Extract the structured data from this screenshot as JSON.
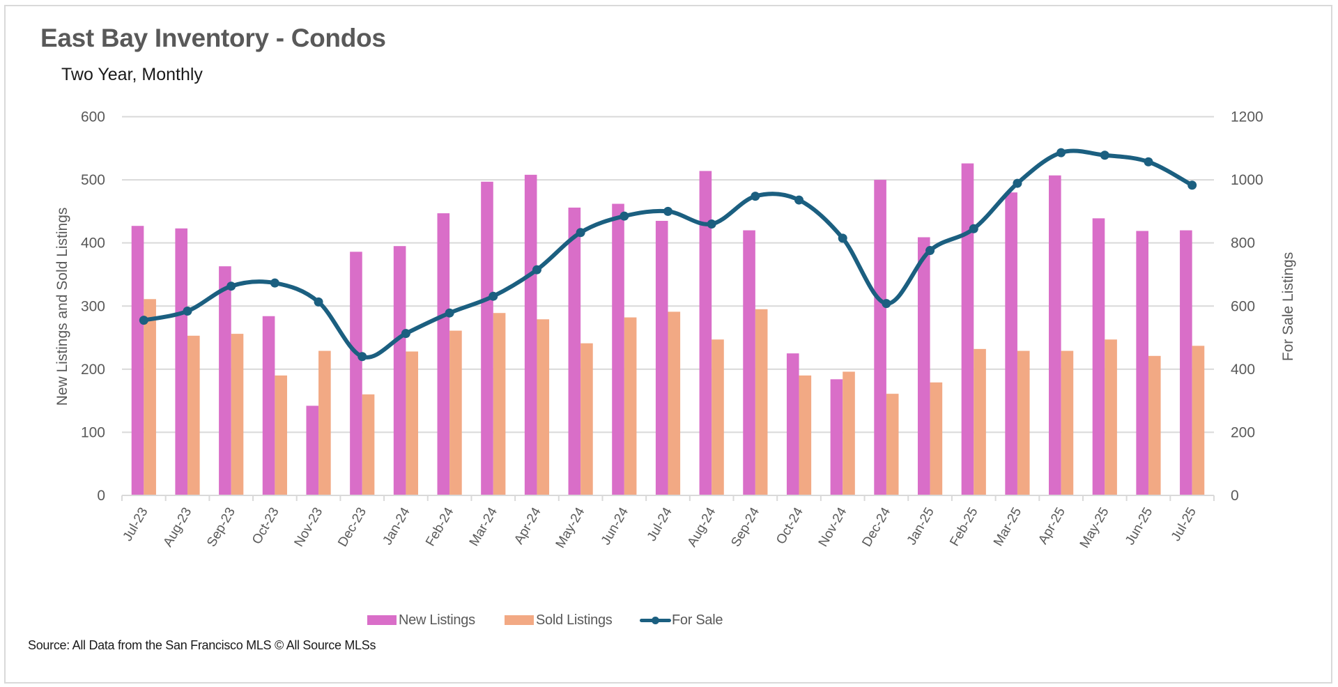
{
  "chart_data": {
    "type": "bar",
    "combo": "clustered bar + line (secondary axis)",
    "title": "East Bay Inventory - Condos",
    "subtitle": "Two Year, Monthly",
    "source": "Source: All Data from the San Francisco MLS © All Source MLSs",
    "xlabel": "",
    "ylabel": "New Listings and Sold Listings",
    "ylabel_right": "For Sale Listings",
    "ylim": [
      0,
      600
    ],
    "yticks": [
      0,
      100,
      200,
      300,
      400,
      500,
      600
    ],
    "ylim_right": [
      0,
      1200
    ],
    "yticks_right": [
      0,
      200,
      400,
      600,
      800,
      1000,
      1200
    ],
    "grid": true,
    "legend_position": "bottom",
    "categories": [
      "Jul-23",
      "Aug-23",
      "Sep-23",
      "Oct-23",
      "Nov-23",
      "Dec-23",
      "Jan-24",
      "Feb-24",
      "Mar-24",
      "Apr-24",
      "May-24",
      "Jun-24",
      "Jul-24",
      "Aug-24",
      "Sep-24",
      "Oct-24",
      "Nov-24",
      "Dec-24",
      "Jan-25",
      "Feb-25",
      "Mar-25",
      "Apr-25",
      "May-25",
      "Jun-25",
      "Jul-25"
    ],
    "series": [
      {
        "name": "New Listings",
        "type": "bar",
        "axis": "left",
        "color": "#d96ec8",
        "values": [
          427,
          423,
          363,
          284,
          142,
          386,
          395,
          447,
          497,
          508,
          456,
          462,
          435,
          514,
          420,
          225,
          184,
          500,
          409,
          526,
          480,
          507,
          439,
          419,
          420
        ]
      },
      {
        "name": "Sold Listings",
        "type": "bar",
        "axis": "left",
        "color": "#f2a984",
        "values": [
          311,
          253,
          256,
          190,
          229,
          160,
          228,
          261,
          289,
          279,
          241,
          282,
          291,
          247,
          295,
          190,
          196,
          161,
          179,
          232,
          229,
          229,
          247,
          221,
          237
        ]
      },
      {
        "name": "For Sale",
        "type": "line",
        "smooth": true,
        "markers": true,
        "axis": "right",
        "color": "#1b5f80",
        "values": [
          555,
          584,
          663,
          673,
          613,
          440,
          513,
          578,
          631,
          715,
          833,
          885,
          900,
          860,
          948,
          936,
          815,
          608,
          776,
          845,
          989,
          1086,
          1078,
          1057,
          983
        ]
      }
    ]
  },
  "colors": {
    "gridline": "#d9d9d9",
    "axis_text": "#595959",
    "title_text": "#595959"
  }
}
